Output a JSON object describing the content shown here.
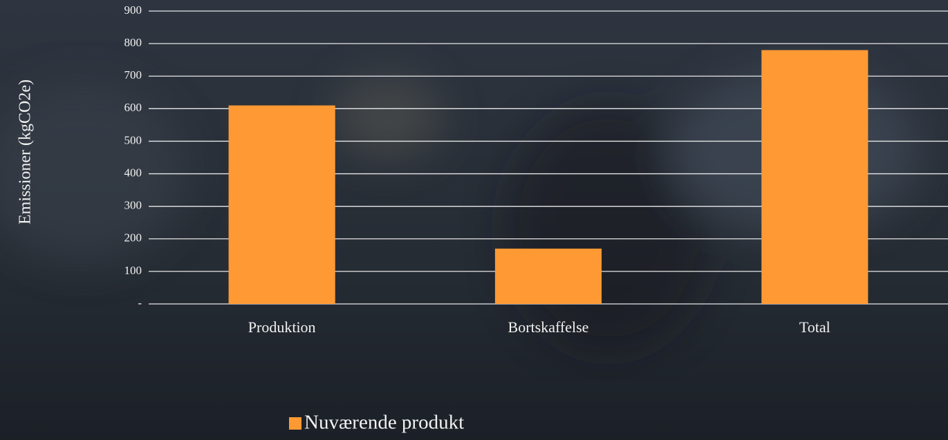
{
  "chart_data": {
    "type": "bar",
    "y_label": "Emissioner (kgCO2e)",
    "categories": [
      "Produktion",
      "Bortskaffelse",
      "Total"
    ],
    "series": [
      {
        "name": "Nuværende produkt",
        "color": "#ff9933",
        "values": [
          610,
          170,
          780
        ]
      }
    ],
    "ylim": [
      0,
      900
    ],
    "yticks": [
      {
        "value": 0,
        "label": "-"
      },
      100,
      200,
      300,
      400,
      500,
      600,
      700,
      800,
      900
    ],
    "grid": true,
    "legend": "bottom"
  }
}
